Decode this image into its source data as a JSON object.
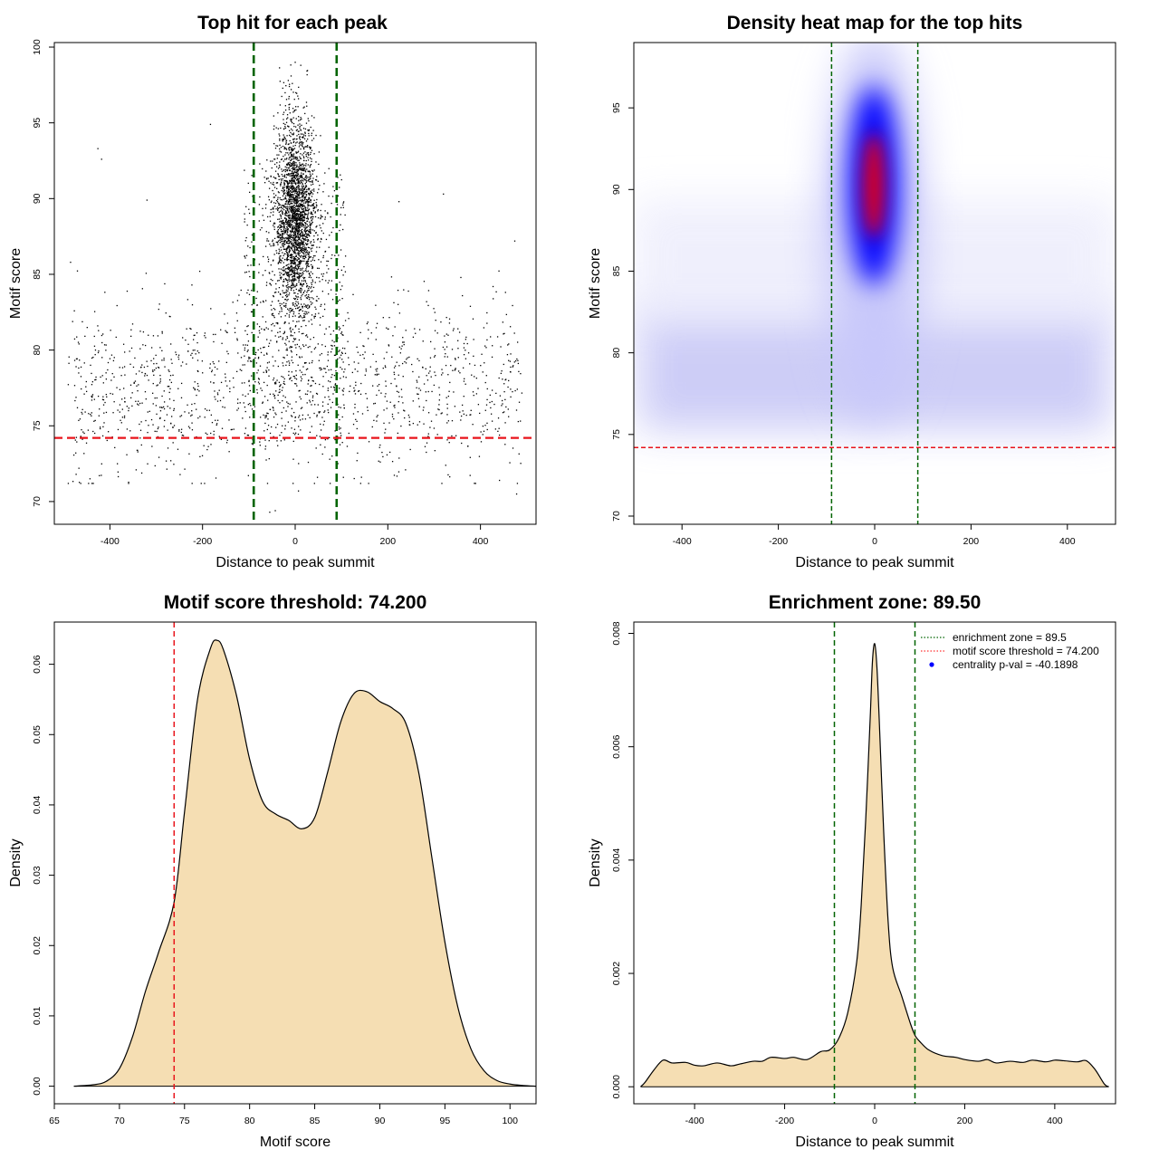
{
  "chart_data": [
    {
      "type": "scatter",
      "title": "Top hit for each peak",
      "xlabel": "Distance to peak summit",
      "ylabel": "Motif score",
      "xlim": [
        -520,
        520
      ],
      "ylim": [
        68.5,
        100.3
      ],
      "xticks": [
        -400,
        -200,
        0,
        200,
        400
      ],
      "yticks": [
        70,
        75,
        80,
        85,
        90,
        95,
        100
      ],
      "vlines": [
        -89.5,
        89.5
      ],
      "hline": 74.2,
      "point_count": 4300,
      "sample_points": [
        [
          -426,
          93.3
        ],
        [
          -418,
          92.6
        ],
        [
          -473,
          71.8
        ],
        [
          -485,
          85.8
        ],
        [
          -467,
          72.2
        ],
        [
          -320,
          89.9
        ],
        [
          -183,
          94.9
        ],
        [
          -55,
          69.3
        ],
        [
          -43,
          69.4
        ],
        [
          7,
          70.7
        ],
        [
          48,
          71.6
        ],
        [
          104,
          71.6
        ],
        [
          224,
          89.8
        ],
        [
          320,
          90.3
        ],
        [
          474,
          87.2
        ],
        [
          478,
          70.5
        ],
        [
          441,
          71.4
        ],
        [
          0,
          99.0
        ],
        [
          12,
          98.8
        ],
        [
          -15,
          97.8
        ]
      ]
    },
    {
      "type": "heatmap",
      "title": "Density heat map for the top hits",
      "xlabel": "Distance to peak summit",
      "ylabel": "Motif score",
      "xlim": [
        -500,
        500
      ],
      "ylim": [
        69.5,
        99.0
      ],
      "xticks": [
        -400,
        -200,
        0,
        200,
        400
      ],
      "yticks": [
        70,
        75,
        80,
        85,
        90,
        95
      ],
      "vlines": [
        -89.5,
        89.5
      ],
      "hline": 74.2,
      "peak": {
        "x": 0,
        "y": 90
      },
      "colors": [
        "#ffffff",
        "#0000ff",
        "#ff0000"
      ]
    },
    {
      "type": "area",
      "title": "Motif score threshold: 74.200",
      "xlabel": "Motif score",
      "ylabel": "Density",
      "xlim": [
        65,
        102
      ],
      "ylim": [
        -0.0025,
        0.066
      ],
      "xticks": [
        65,
        70,
        75,
        80,
        85,
        90,
        95,
        100
      ],
      "yticks": [
        0.0,
        0.01,
        0.02,
        0.03,
        0.04,
        0.05,
        0.06
      ],
      "vline": 74.2,
      "fill": "#f5deb3",
      "x": [
        66.5,
        68,
        69,
        70,
        71,
        72,
        73,
        74.2,
        75,
        76,
        77,
        77.5,
        78,
        79,
        80,
        81,
        82,
        83,
        84,
        85,
        86,
        87,
        88,
        89,
        90,
        91,
        92,
        93,
        94,
        95,
        96,
        97,
        98,
        99,
        100,
        101,
        102
      ],
      "values": [
        0.0,
        0.0002,
        0.0007,
        0.0025,
        0.007,
        0.0135,
        0.019,
        0.0262,
        0.039,
        0.055,
        0.0623,
        0.0634,
        0.062,
        0.0555,
        0.0465,
        0.0405,
        0.0387,
        0.0378,
        0.0366,
        0.0382,
        0.0447,
        0.0518,
        0.0558,
        0.0561,
        0.0547,
        0.0537,
        0.0516,
        0.0445,
        0.0325,
        0.0205,
        0.0112,
        0.0053,
        0.0022,
        0.0008,
        0.0003,
        0.0001,
        0.0
      ]
    },
    {
      "type": "area",
      "title": "Enrichment zone: 89.50",
      "xlabel": "Distance to peak summit",
      "ylabel": "Density",
      "xlim": [
        -535,
        535
      ],
      "ylim": [
        -0.0003,
        0.0082
      ],
      "xticks": [
        -400,
        -200,
        0,
        200,
        400
      ],
      "yticks": [
        0.0,
        0.002,
        0.004,
        0.006,
        0.008
      ],
      "vlines": [
        -89.5,
        89.5
      ],
      "fill": "#f5deb3",
      "legend": [
        {
          "label": "enrichment zone = 89.5",
          "color": "#006400",
          "style": "dotted-line"
        },
        {
          "label": "motif score threshold = 74.200",
          "color": "#ff3030",
          "style": "dotted-line"
        },
        {
          "label": "centrality p-val = -40.1898",
          "color": "#0000ff",
          "style": "point"
        }
      ],
      "x": [
        -520,
        -510,
        -490,
        -470,
        -450,
        -420,
        -400,
        -380,
        -350,
        -320,
        -300,
        -270,
        -250,
        -230,
        -200,
        -180,
        -150,
        -120,
        -100,
        -80,
        -60,
        -40,
        -30,
        -20,
        -10,
        -5,
        0,
        5,
        10,
        20,
        30,
        40,
        60,
        80,
        90,
        100,
        120,
        150,
        180,
        200,
        230,
        250,
        270,
        300,
        330,
        350,
        380,
        400,
        420,
        450,
        470,
        490,
        510,
        520
      ],
      "values": [
        0.0,
        8e-05,
        0.0003,
        0.00047,
        0.00042,
        0.00043,
        0.00038,
        0.00037,
        0.00042,
        0.00037,
        0.0004,
        0.00045,
        0.00045,
        0.00052,
        0.0005,
        0.00052,
        0.00048,
        0.00062,
        0.00065,
        0.00085,
        0.0013,
        0.0022,
        0.0032,
        0.0047,
        0.0065,
        0.0075,
        0.00782,
        0.0074,
        0.0065,
        0.0045,
        0.0029,
        0.0021,
        0.0016,
        0.0011,
        0.0009,
        0.0008,
        0.00065,
        0.00055,
        0.00052,
        0.00048,
        0.00045,
        0.00048,
        0.00042,
        0.00045,
        0.00043,
        0.00047,
        0.00044,
        0.00047,
        0.00046,
        0.00044,
        0.00046,
        0.0003,
        5e-05,
        0.0
      ]
    }
  ]
}
